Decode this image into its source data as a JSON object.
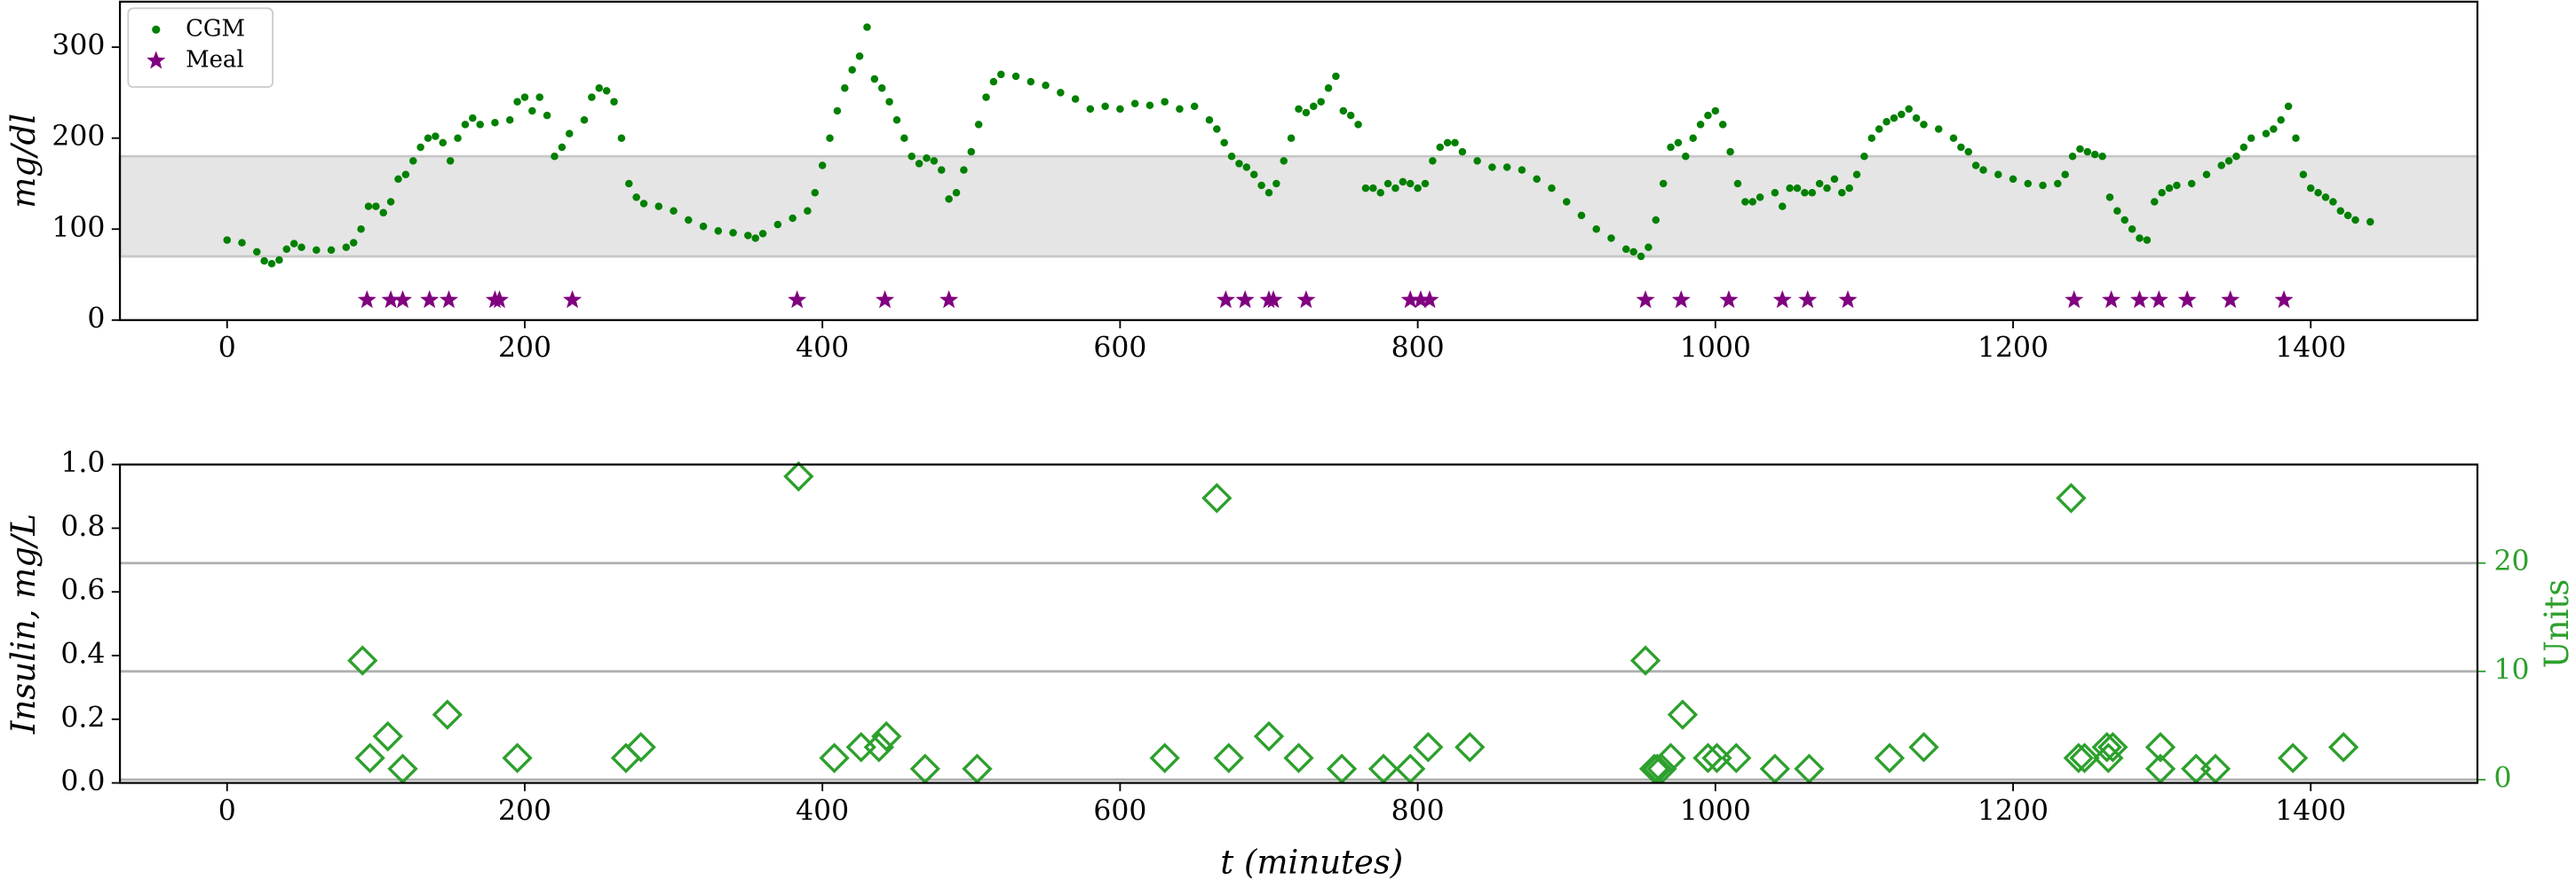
{
  "chart_data": [
    {
      "type": "scatter",
      "ylabel": "mg/dl",
      "xlim": [
        -72,
        1512
      ],
      "ylim": [
        0,
        350
      ],
      "xticks": [
        0,
        200,
        400,
        600,
        800,
        1000,
        1200,
        1400
      ],
      "yticks": [
        0,
        100,
        200,
        300
      ],
      "target_range": [
        70,
        180
      ],
      "legend": "upper left",
      "series": [
        {
          "name": "CGM",
          "color": "#008000",
          "marker": "circle",
          "x": [
            0,
            10,
            20,
            25,
            30,
            35,
            40,
            45,
            50,
            60,
            70,
            80,
            85,
            90,
            95,
            100,
            105,
            110,
            115,
            120,
            125,
            130,
            135,
            140,
            145,
            150,
            155,
            160,
            165,
            170,
            180,
            190,
            195,
            200,
            205,
            210,
            215,
            220,
            225,
            230,
            240,
            245,
            250,
            255,
            260,
            265,
            270,
            275,
            280,
            290,
            300,
            310,
            320,
            330,
            340,
            350,
            355,
            360,
            370,
            380,
            390,
            395,
            400,
            405,
            410,
            415,
            420,
            425,
            430,
            435,
            440,
            445,
            450,
            455,
            460,
            465,
            470,
            475,
            480,
            485,
            490,
            495,
            500,
            505,
            510,
            515,
            520,
            530,
            540,
            550,
            560,
            570,
            580,
            590,
            600,
            610,
            620,
            630,
            640,
            650,
            660,
            665,
            670,
            675,
            680,
            685,
            690,
            695,
            700,
            705,
            710,
            715,
            720,
            725,
            730,
            735,
            740,
            745,
            750,
            755,
            760,
            765,
            770,
            775,
            780,
            785,
            790,
            795,
            800,
            805,
            810,
            815,
            820,
            825,
            830,
            840,
            850,
            860,
            870,
            880,
            890,
            900,
            910,
            920,
            930,
            940,
            945,
            950,
            955,
            960,
            965,
            970,
            975,
            980,
            985,
            990,
            995,
            1000,
            1005,
            1010,
            1015,
            1020,
            1025,
            1030,
            1040,
            1045,
            1050,
            1055,
            1060,
            1065,
            1070,
            1075,
            1080,
            1085,
            1090,
            1095,
            1100,
            1105,
            1110,
            1115,
            1120,
            1125,
            1130,
            1135,
            1140,
            1150,
            1160,
            1165,
            1170,
            1175,
            1180,
            1190,
            1200,
            1210,
            1220,
            1230,
            1235,
            1240,
            1245,
            1250,
            1255,
            1260,
            1265,
            1270,
            1275,
            1280,
            1285,
            1290,
            1295,
            1300,
            1305,
            1310,
            1320,
            1330,
            1340,
            1345,
            1350,
            1355,
            1360,
            1370,
            1375,
            1380,
            1385,
            1390,
            1395,
            1400,
            1405,
            1410,
            1415,
            1420,
            1425,
            1430,
            1440
          ],
          "values": [
            88,
            85,
            75,
            65,
            62,
            66,
            78,
            84,
            80,
            77,
            77,
            80,
            85,
            100,
            125,
            125,
            118,
            130,
            155,
            160,
            175,
            190,
            200,
            202,
            195,
            175,
            200,
            215,
            222,
            215,
            217,
            220,
            240,
            245,
            230,
            245,
            225,
            180,
            190,
            205,
            220,
            245,
            255,
            252,
            240,
            200,
            150,
            135,
            128,
            125,
            120,
            110,
            103,
            98,
            96,
            93,
            90,
            95,
            105,
            112,
            120,
            140,
            170,
            200,
            230,
            255,
            275,
            290,
            322,
            265,
            255,
            240,
            220,
            200,
            180,
            172,
            178,
            175,
            165,
            133,
            140,
            165,
            185,
            215,
            245,
            262,
            270,
            268,
            262,
            258,
            250,
            243,
            232,
            235,
            232,
            238,
            236,
            240,
            232,
            235,
            220,
            210,
            195,
            180,
            172,
            168,
            160,
            148,
            140,
            150,
            175,
            200,
            232,
            228,
            235,
            240,
            255,
            268,
            230,
            225,
            215,
            145,
            145,
            140,
            150,
            145,
            152,
            150,
            145,
            150,
            175,
            190,
            195,
            195,
            185,
            175,
            168,
            168,
            165,
            155,
            145,
            130,
            115,
            100,
            90,
            78,
            75,
            70,
            80,
            110,
            150,
            190,
            195,
            180,
            200,
            215,
            225,
            230,
            215,
            185,
            150,
            130,
            130,
            135,
            140,
            125,
            145,
            145,
            140,
            140,
            150,
            145,
            155,
            140,
            145,
            160,
            180,
            200,
            210,
            218,
            222,
            226,
            232,
            222,
            215,
            210,
            200,
            190,
            185,
            170,
            165,
            160,
            155,
            150,
            148,
            150,
            160,
            180,
            188,
            185,
            182,
            180,
            135,
            120,
            110,
            100,
            90,
            88,
            130,
            140,
            145,
            148,
            150,
            160,
            170,
            175,
            180,
            190,
            200,
            205,
            210,
            220,
            235,
            200,
            160,
            145,
            140,
            135,
            130,
            120,
            115,
            110,
            108
          ]
        },
        {
          "name": "Meal",
          "color": "#800080",
          "marker": "star",
          "x": [
            94,
            110,
            118,
            136,
            149,
            180,
            183,
            232,
            383,
            442,
            485,
            671,
            684,
            700,
            703,
            725,
            795,
            802,
            808,
            953,
            977,
            1009,
            1045,
            1062,
            1089,
            1241,
            1266,
            1285,
            1298,
            1317,
            1346,
            1382
          ],
          "values": [
            22,
            22,
            22,
            22,
            22,
            22,
            22,
            22,
            22,
            22,
            22,
            22,
            22,
            22,
            22,
            22,
            22,
            22,
            22,
            22,
            22,
            22,
            22,
            22,
            22,
            22,
            22,
            22,
            22,
            22,
            22,
            22
          ]
        }
      ]
    },
    {
      "type": "scatter",
      "ylabel": "Insulin, mg/L",
      "xlabel": "t (minutes)",
      "y2label": "Units",
      "xlim": [
        -72,
        1512
      ],
      "ylim": [
        0,
        1
      ],
      "xticks": [
        0,
        200,
        400,
        600,
        800,
        1000,
        1200,
        1400
      ],
      "yticks": [
        {
          "value": 0,
          "label": "0.0"
        },
        0.2,
        0.4,
        0.6,
        0.8,
        {
          "value": 1,
          "label": "1.0"
        }
      ],
      "y2lim": [
        -0.3,
        29.1
      ],
      "y2ticks": [
        0,
        10,
        20
      ],
      "grid": "y2",
      "y2color": "#2ca02c",
      "series": [
        {
          "color": "#2ca02c",
          "marker": "diamond",
          "axis": "y2",
          "x": [
            91,
            96,
            108,
            118,
            148,
            195,
            268,
            278,
            384,
            408,
            426,
            438,
            443,
            469,
            504,
            630,
            665,
            673,
            700,
            720,
            749,
            777,
            795,
            807,
            835,
            953,
            959,
            961,
            964,
            970,
            978,
            995,
            1001,
            1014,
            1040,
            1063,
            1117,
            1140,
            1239,
            1244,
            1248,
            1263,
            1264,
            1267,
            1299,
            1299,
            1323,
            1336,
            1388,
            1422
          ],
          "values": [
            11,
            2,
            4,
            1,
            6,
            2,
            2,
            3,
            28,
            2,
            3,
            3,
            4,
            1,
            1,
            2,
            26,
            2,
            4,
            2,
            1,
            1,
            1,
            3,
            3,
            11,
            1,
            1,
            1,
            2,
            6,
            2,
            2,
            2,
            1,
            1,
            2,
            3,
            26,
            2,
            2,
            3,
            2,
            3,
            3,
            1,
            1,
            1,
            2,
            3
          ]
        }
      ]
    }
  ]
}
